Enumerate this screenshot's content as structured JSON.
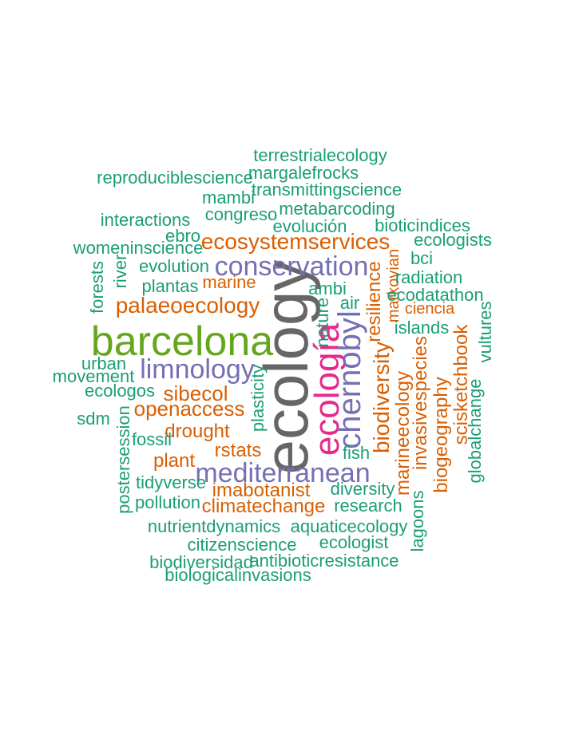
{
  "palette": {
    "teal": "#1b9e77",
    "orange": "#d95f02",
    "purple": "#7570b3",
    "magenta": "#e7298a",
    "green": "#66a61e",
    "gray": "#666666"
  },
  "words": [
    {
      "text": "ecology",
      "color": "#666666"
    },
    {
      "text": "barcelona",
      "color": "#66a61e"
    },
    {
      "text": "ecología",
      "color": "#e7298a"
    },
    {
      "text": "chernobyl",
      "color": "#7570b3"
    },
    {
      "text": "conservation",
      "color": "#7570b3"
    },
    {
      "text": "mediterranean",
      "color": "#7570b3"
    },
    {
      "text": "limnology",
      "color": "#7570b3"
    },
    {
      "text": "ecosystemservices",
      "color": "#d95f02"
    },
    {
      "text": "palaeoecology",
      "color": "#d95f02"
    },
    {
      "text": "biodiversity",
      "color": "#d95f02"
    },
    {
      "text": "resilience",
      "color": "#d95f02"
    },
    {
      "text": "marineecology",
      "color": "#d95f02"
    },
    {
      "text": "invasivespecies",
      "color": "#d95f02"
    },
    {
      "text": "biogeography",
      "color": "#d95f02"
    },
    {
      "text": "scisketchbook",
      "color": "#d95f02"
    },
    {
      "text": "sibecol",
      "color": "#d95f02"
    },
    {
      "text": "openaccess",
      "color": "#d95f02"
    },
    {
      "text": "marine",
      "color": "#d95f02"
    },
    {
      "text": "drought",
      "color": "#d95f02"
    },
    {
      "text": "rstats",
      "color": "#d95f02"
    },
    {
      "text": "plant",
      "color": "#d95f02"
    },
    {
      "text": "imabotanist",
      "color": "#d95f02"
    },
    {
      "text": "climatechange",
      "color": "#d95f02"
    },
    {
      "text": "markovian",
      "color": "#d95f02"
    },
    {
      "text": "ciencia",
      "color": "#d95f02"
    },
    {
      "text": "terrestrialecology",
      "color": "#1b9e77"
    },
    {
      "text": "reproduciblescience",
      "color": "#1b9e77"
    },
    {
      "text": "margalefrocks",
      "color": "#1b9e77"
    },
    {
      "text": "transmittingscience",
      "color": "#1b9e77"
    },
    {
      "text": "mambi",
      "color": "#1b9e77"
    },
    {
      "text": "metabarcoding",
      "color": "#1b9e77"
    },
    {
      "text": "interactions",
      "color": "#1b9e77"
    },
    {
      "text": "congreso",
      "color": "#1b9e77"
    },
    {
      "text": "evolución",
      "color": "#1b9e77"
    },
    {
      "text": "bioticindices",
      "color": "#1b9e77"
    },
    {
      "text": "ebro",
      "color": "#1b9e77"
    },
    {
      "text": "ecologists",
      "color": "#1b9e77"
    },
    {
      "text": "womeninscience",
      "color": "#1b9e77"
    },
    {
      "text": "evolution",
      "color": "#1b9e77"
    },
    {
      "text": "bci",
      "color": "#1b9e77"
    },
    {
      "text": "radiation",
      "color": "#1b9e77"
    },
    {
      "text": "plantas",
      "color": "#1b9e77"
    },
    {
      "text": "ambi",
      "color": "#1b9e77"
    },
    {
      "text": "ecodatathon",
      "color": "#1b9e77"
    },
    {
      "text": "air",
      "color": "#1b9e77"
    },
    {
      "text": "islands",
      "color": "#1b9e77"
    },
    {
      "text": "forests",
      "color": "#1b9e77"
    },
    {
      "text": "river",
      "color": "#1b9e77"
    },
    {
      "text": "nature",
      "color": "#1b9e77"
    },
    {
      "text": "urban",
      "color": "#1b9e77"
    },
    {
      "text": "movement",
      "color": "#1b9e77"
    },
    {
      "text": "ecologos",
      "color": "#1b9e77"
    },
    {
      "text": "sdm",
      "color": "#1b9e77"
    },
    {
      "text": "plasticity",
      "color": "#1b9e77"
    },
    {
      "text": "fossil",
      "color": "#1b9e77"
    },
    {
      "text": "fish",
      "color": "#1b9e77"
    },
    {
      "text": "postersession",
      "color": "#1b9e77"
    },
    {
      "text": "tidyverse",
      "color": "#1b9e77"
    },
    {
      "text": "pollution",
      "color": "#1b9e77"
    },
    {
      "text": "diversity",
      "color": "#1b9e77"
    },
    {
      "text": "research",
      "color": "#1b9e77"
    },
    {
      "text": "lagoons",
      "color": "#1b9e77"
    },
    {
      "text": "globalchange",
      "color": "#1b9e77"
    },
    {
      "text": "vultures",
      "color": "#1b9e77"
    },
    {
      "text": "nutrientdynamics",
      "color": "#1b9e77"
    },
    {
      "text": "aquaticecology",
      "color": "#1b9e77"
    },
    {
      "text": "citizenscience",
      "color": "#1b9e77"
    },
    {
      "text": "ecologist",
      "color": "#1b9e77"
    },
    {
      "text": "biodiversidad",
      "color": "#1b9e77"
    },
    {
      "text": "antibioticresistance",
      "color": "#1b9e77"
    },
    {
      "text": "biologicalinvasions",
      "color": "#1b9e77"
    }
  ]
}
